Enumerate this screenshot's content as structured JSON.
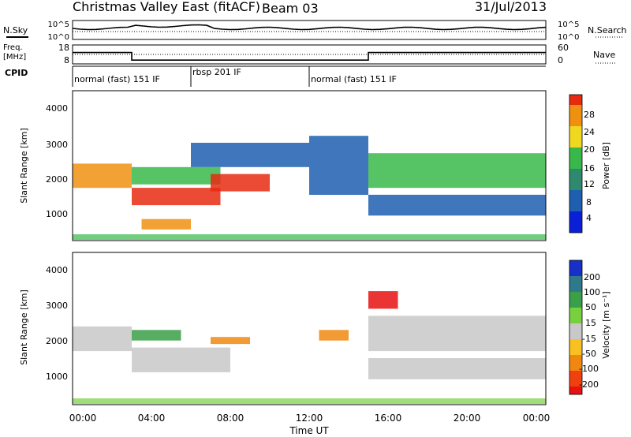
{
  "header": {
    "title": "Christmas Valley East (fitACF)",
    "beam": "Beam 03",
    "date": "31/Jul/2013"
  },
  "noise_panel": {
    "left_label": "N.Sky",
    "right_label": "N.Search",
    "left_ticks": [
      "10^5",
      "10^0"
    ],
    "right_ticks": [
      "10^5",
      "10^0"
    ]
  },
  "freq_panel": {
    "left_label_line1": "Freq.",
    "left_label_line2": "[MHz]",
    "right_label": "Nave",
    "left_ticks": [
      "18",
      "8"
    ],
    "right_ticks": [
      "60",
      "0"
    ]
  },
  "cpid_panel": {
    "label": "CPID",
    "segments": [
      {
        "name": "normal (fast) 151 IF",
        "start_hour": 0,
        "end_hour": 6
      },
      {
        "name": "rbsp 201 IF",
        "start_hour": 6,
        "end_hour": 12
      },
      {
        "name": "normal (fast) 151 IF",
        "start_hour": 12,
        "end_hour": 24
      }
    ]
  },
  "power_panel": {
    "ylabel": "Slant Range [km]",
    "yticks": [
      "1000",
      "2000",
      "3000",
      "4000"
    ],
    "colorbar_label": "Power [dB]",
    "colorbar_ticks": [
      "4",
      "8",
      "12",
      "16",
      "20",
      "24",
      "28"
    ],
    "colors": [
      "#0a1fd8",
      "#1f5fb0",
      "#2e8a6e",
      "#38b84a",
      "#f0d820",
      "#f09010",
      "#e82a10"
    ]
  },
  "velocity_panel": {
    "ylabel": "Slant Range [km]",
    "yticks": [
      "1000",
      "2000",
      "3000",
      "4000"
    ],
    "colorbar_label": "Velocity [m s⁻¹]",
    "colorbar_ticks": [
      "200",
      "100",
      "50",
      "15",
      "-15",
      "-50",
      "-100",
      "-200"
    ],
    "colors": [
      "#1830c8",
      "#2f7a8a",
      "#3aa048",
      "#78d040",
      "#c8c8c8",
      "#f8c020",
      "#f08810",
      "#f04010",
      "#e81010"
    ]
  },
  "xaxis": {
    "label": "Time UT",
    "ticks": [
      "00:00",
      "04:00",
      "08:00",
      "12:00",
      "16:00",
      "20:00",
      "00:00"
    ]
  },
  "chart_data": {
    "type": "heatmap",
    "title": "Christmas Valley East (fitACF)",
    "xlabel": "Time UT",
    "ylabel": "Slant Range [km]",
    "xlim": [
      0,
      24
    ],
    "ylim": [
      180,
      4500
    ],
    "frequency_step": {
      "hours": [
        0,
        3,
        3,
        15,
        15,
        24
      ],
      "mhz": [
        14,
        14,
        10,
        10,
        14,
        14
      ]
    },
    "power_bands": [
      {
        "t0": 0,
        "t1": 3,
        "r0": 1700,
        "r1": 2400,
        "level": 5
      },
      {
        "t0": 3,
        "t1": 7.5,
        "r0": 1200,
        "r1": 1700,
        "level": 6
      },
      {
        "t0": 3,
        "t1": 7.5,
        "r0": 1800,
        "r1": 2300,
        "level": 3
      },
      {
        "t0": 3.5,
        "t1": 6,
        "r0": 500,
        "r1": 800,
        "level": 5
      },
      {
        "t0": 7,
        "t1": 10,
        "r0": 1600,
        "r1": 2100,
        "level": 6
      },
      {
        "t0": 6,
        "t1": 12,
        "r0": 2300,
        "r1": 3000,
        "level": 1
      },
      {
        "t0": 12,
        "t1": 15,
        "r0": 1500,
        "r1": 3200,
        "level": 1
      },
      {
        "t0": 15,
        "t1": 24,
        "r0": 1700,
        "r1": 2700,
        "level": 3
      },
      {
        "t0": 15,
        "t1": 24,
        "r0": 900,
        "r1": 1500,
        "level": 1
      }
    ],
    "velocity_bands": [
      {
        "t0": 0,
        "t1": 3,
        "r0": 1700,
        "r1": 2400,
        "level": 4
      },
      {
        "t0": 3,
        "t1": 8,
        "r0": 1100,
        "r1": 1800,
        "level": 4
      },
      {
        "t0": 3,
        "t1": 5.5,
        "r0": 2000,
        "r1": 2300,
        "level": 2
      },
      {
        "t0": 7,
        "t1": 9,
        "r0": 1900,
        "r1": 2100,
        "level": 6
      },
      {
        "t0": 12.5,
        "t1": 14,
        "r0": 2000,
        "r1": 2300,
        "level": 6
      },
      {
        "t0": 15,
        "t1": 16.5,
        "r0": 2900,
        "r1": 3400,
        "level": 8
      },
      {
        "t0": 15,
        "t1": 24,
        "r0": 1700,
        "r1": 2700,
        "level": 4
      },
      {
        "t0": 15,
        "t1": 24,
        "r0": 900,
        "r1": 1500,
        "level": 4
      }
    ]
  }
}
